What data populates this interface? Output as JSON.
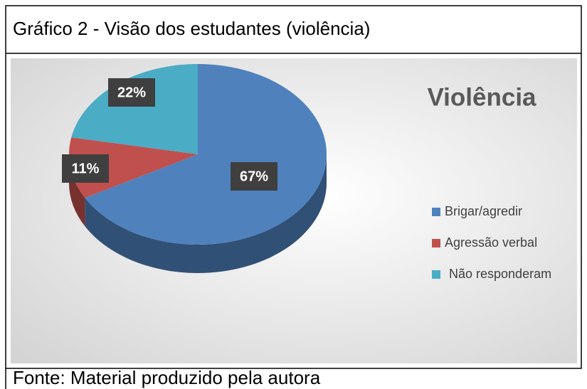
{
  "caption": "Gráfico 2 - Visão dos estudantes (violência)",
  "chart_data": {
    "type": "pie",
    "title": "Violência",
    "categories": [
      "Brigar/agredir",
      "Agressão verbal",
      "Não responderam"
    ],
    "values": [
      67,
      11,
      22
    ],
    "value_labels": [
      "67%",
      "11%",
      "22%"
    ],
    "colors": [
      "#4f81bd",
      "#c0504d",
      "#4bacc6"
    ],
    "legend": "right"
  },
  "source": "Fonte: Material produzido pela autora"
}
